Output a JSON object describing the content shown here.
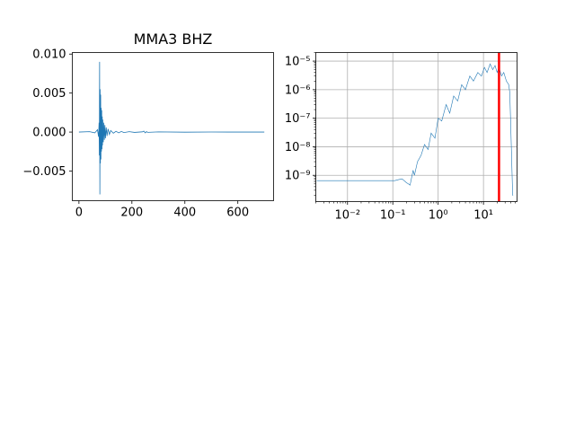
{
  "figure": {
    "background": "#ffffff"
  },
  "chart_data": [
    {
      "type": "line",
      "title": "MMA3 BHZ",
      "xlabel": "",
      "ylabel": "",
      "xlim": [
        -25,
        735
      ],
      "ylim": [
        -0.0088,
        0.0102
      ],
      "xticks": [
        0,
        200,
        400,
        600
      ],
      "xtick_labels": [
        "0",
        "200",
        "400",
        "600"
      ],
      "yticks": [
        -0.005,
        0.0,
        0.005,
        0.01
      ],
      "ytick_labels": [
        "−0.005",
        "0.000",
        "0.005",
        "0.010"
      ],
      "grid": false,
      "line_color": "#1f77b4",
      "series": [
        {
          "x": [
            0,
            40,
            60,
            70,
            74,
            76,
            77,
            78,
            79,
            80,
            81,
            82,
            83,
            84,
            85,
            86,
            87,
            88,
            89,
            90,
            92,
            94,
            96,
            98,
            100,
            103,
            106,
            110,
            115,
            120,
            130,
            140,
            150,
            160,
            170,
            190,
            210,
            240,
            245,
            250,
            255,
            260,
            300,
            400,
            500,
            600,
            700
          ],
          "y": [
            0.0,
            5e-05,
            -0.0001,
            0.0003,
            -0.0006,
            0.0012,
            -0.003,
            0.009,
            -0.008,
            0.0055,
            -0.004,
            0.0048,
            -0.0035,
            0.0031,
            -0.0025,
            0.0028,
            -0.0022,
            0.002,
            -0.0017,
            0.0016,
            -0.0013,
            0.0012,
            -0.001,
            0.0009,
            -0.0008,
            0.0006,
            -0.0005,
            0.0004,
            -0.0003,
            0.0002,
            -0.00015,
            0.0001,
            -0.0001,
            8e-05,
            -6e-05,
            5e-05,
            -4e-05,
            3e-05,
            0.00012,
            -0.0001,
            5e-05,
            -3e-05,
            2e-05,
            -1e-05,
            1e-05,
            0.0,
            0.0
          ]
        }
      ]
    },
    {
      "type": "line",
      "title": "",
      "xlabel": "",
      "ylabel": "",
      "xscale": "log",
      "yscale": "log",
      "xlim": [
        0.002,
        55
      ],
      "ylim": [
        1.2e-10,
        2e-05
      ],
      "xticks": [
        0.01,
        0.1,
        1,
        10
      ],
      "xtick_labels": [
        "10⁻²",
        "10⁻¹",
        "10⁰",
        "10¹"
      ],
      "yticks": [
        1e-09,
        1e-08,
        1e-07,
        1e-06,
        1e-05
      ],
      "ytick_labels": [
        "10⁻⁹",
        "10⁻⁸",
        "10⁻⁷",
        "10⁻⁶",
        "10⁻⁵"
      ],
      "grid": true,
      "line_color": "#1f77b4",
      "series": [
        {
          "x": [
            0.0021,
            0.11,
            0.13,
            0.16,
            0.2,
            0.22,
            0.24,
            0.28,
            0.3,
            0.35,
            0.42,
            0.5,
            0.6,
            0.7,
            0.85,
            1.0,
            1.2,
            1.5,
            1.8,
            2.2,
            2.7,
            3.3,
            4.0,
            5.0,
            6.0,
            7.5,
            9.0,
            10.5,
            12.0,
            14.0,
            16.0,
            18.0,
            20.0,
            22.0,
            25.0,
            28.0,
            32.0,
            36.0,
            38.0,
            40.0,
            42.0,
            44.0,
            45.0
          ],
          "y": [
            6.5e-10,
            6.5e-10,
            7e-10,
            7.5e-10,
            5.5e-10,
            5e-10,
            4.5e-10,
            1.5e-09,
            1e-09,
            3e-09,
            5e-09,
            1.2e-08,
            8e-09,
            3e-08,
            2e-08,
            1e-07,
            8e-08,
            3e-07,
            1.5e-07,
            6e-07,
            4e-07,
            1.5e-06,
            1e-06,
            3e-06,
            2e-06,
            4e-06,
            3e-06,
            6e-06,
            4e-06,
            8e-06,
            5e-06,
            7e-06,
            4e-06,
            6e-06,
            3e-06,
            4e-06,
            2e-06,
            1.5e-06,
            8e-07,
            5e-08,
            3e-09,
            2e-10,
            2e-10
          ]
        }
      ],
      "vline": {
        "x": 22,
        "color": "#ff0000"
      }
    }
  ]
}
